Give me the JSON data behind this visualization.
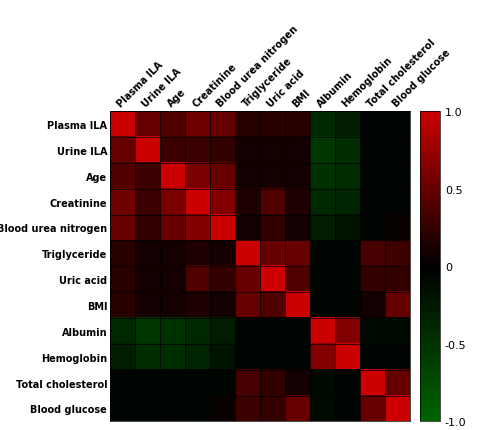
{
  "labels": [
    "Plasma ILA",
    "Urine ILA",
    "Age",
    "Creatinine",
    "Blood urea nitrogen",
    "Triglyceride",
    "Uric acid",
    "BMI",
    "Albumin",
    "Hemoglobin",
    "Total cholesterol",
    "Blood glucose"
  ],
  "correlation_matrix": [
    [
      1.0,
      0.5,
      0.4,
      0.55,
      0.5,
      0.2,
      0.2,
      0.2,
      -0.4,
      -0.3,
      -0.05,
      -0.05
    ],
    [
      0.5,
      1.0,
      0.3,
      0.3,
      0.25,
      0.1,
      0.1,
      0.1,
      -0.55,
      -0.45,
      -0.05,
      -0.05
    ],
    [
      0.4,
      0.3,
      1.0,
      0.6,
      0.5,
      0.1,
      0.1,
      0.1,
      -0.5,
      -0.45,
      -0.05,
      -0.05
    ],
    [
      0.55,
      0.3,
      0.6,
      1.0,
      0.65,
      0.15,
      0.4,
      0.15,
      -0.4,
      -0.35,
      -0.05,
      -0.05
    ],
    [
      0.5,
      0.25,
      0.5,
      0.65,
      1.0,
      0.1,
      0.25,
      0.1,
      -0.3,
      -0.2,
      -0.05,
      0.05
    ],
    [
      0.2,
      0.1,
      0.1,
      0.15,
      0.1,
      1.0,
      0.5,
      0.5,
      -0.05,
      -0.05,
      0.35,
      0.3
    ],
    [
      0.2,
      0.1,
      0.1,
      0.4,
      0.25,
      0.5,
      1.0,
      0.4,
      -0.05,
      -0.05,
      0.25,
      0.25
    ],
    [
      0.2,
      0.1,
      0.1,
      0.15,
      0.1,
      0.5,
      0.4,
      1.0,
      -0.05,
      -0.05,
      0.1,
      0.5
    ],
    [
      -0.4,
      -0.55,
      -0.5,
      -0.4,
      -0.3,
      -0.05,
      -0.05,
      -0.05,
      1.0,
      0.65,
      -0.1,
      -0.1
    ],
    [
      -0.3,
      -0.45,
      -0.45,
      -0.35,
      -0.2,
      -0.05,
      -0.05,
      -0.05,
      0.65,
      1.0,
      -0.05,
      -0.05
    ],
    [
      -0.05,
      -0.05,
      -0.05,
      -0.05,
      -0.05,
      0.35,
      0.25,
      0.1,
      -0.1,
      -0.05,
      1.0,
      0.5
    ],
    [
      -0.05,
      -0.05,
      -0.05,
      -0.05,
      0.05,
      0.3,
      0.25,
      0.5,
      -0.1,
      -0.05,
      0.5,
      1.0
    ]
  ],
  "colorbar_ticks": [
    1.0,
    0.5,
    0.0,
    -0.5,
    -1.0
  ],
  "colorbar_labels": [
    "1.0",
    "0.5",
    "0",
    "-0.5",
    "-1.0"
  ],
  "vmin": -1.0,
  "vmax": 1.0,
  "background_color": "#ffffff",
  "tick_fontsize": 7.0,
  "cbar_fontsize": 8.0
}
